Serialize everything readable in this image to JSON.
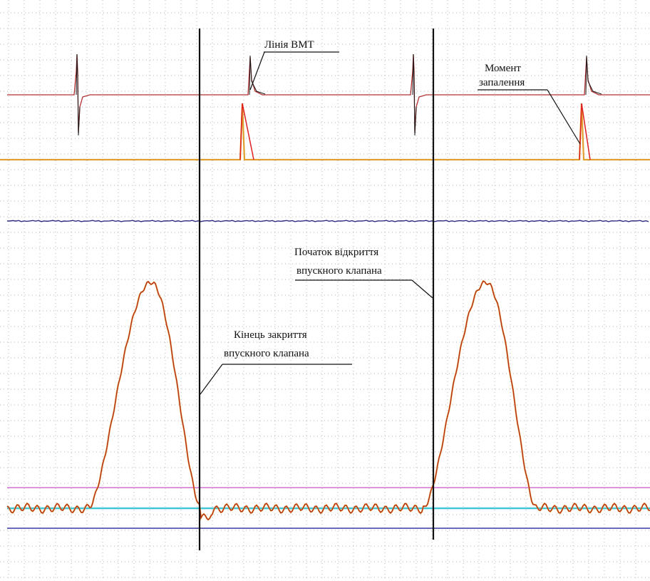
{
  "chart_data": {
    "type": "line",
    "title": "",
    "xlabel": "",
    "ylabel": "",
    "grid": true,
    "annotations": {
      "tdc_line": "Лінія  ВМТ",
      "ignition_1": "Момент",
      "ignition_2": "запалення",
      "intake_open_1": "Початок відкриття",
      "intake_open_2": "впускного клапана",
      "intake_close_1": "Кінець закриття",
      "intake_close_2": "впускного клапана"
    },
    "colors": {
      "grid": "#9a9a9a",
      "secondary_signal": "#e0a030",
      "ignition_pulse": "#e02020",
      "pressure_trace": "#b02020",
      "pressure_overlay": "#e0a030",
      "flat_trace": "#2c2c80",
      "cyan_level": "#40c8d8",
      "magenta_level": "#d070d0",
      "blue_level": "#3838a0",
      "marker": "#111111"
    }
  }
}
